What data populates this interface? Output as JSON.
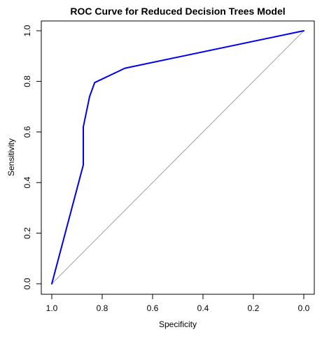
{
  "chart_data": {
    "type": "line",
    "title": "ROC Curve for Reduced Decision Trees Model",
    "xlabel": "Specificity",
    "ylabel": "Sensitivity",
    "x_reversed": true,
    "xlim": [
      1.0,
      0.0
    ],
    "ylim": [
      0.0,
      1.0
    ],
    "x_ticks": [
      "1.0",
      "0.8",
      "0.6",
      "0.4",
      "0.2",
      "0.0"
    ],
    "x_tick_values": [
      1.0,
      0.8,
      0.6,
      0.4,
      0.2,
      0.0
    ],
    "y_ticks": [
      "0.0",
      "0.2",
      "0.4",
      "0.6",
      "0.8",
      "1.0"
    ],
    "y_tick_values": [
      0.0,
      0.2,
      0.4,
      0.6,
      0.8,
      1.0
    ],
    "grid": false,
    "series": [
      {
        "color": "#0000ee",
        "x": [
          1.0,
          0.875,
          0.875,
          0.85,
          0.83,
          0.71,
          0.0
        ],
        "y": [
          0.0,
          0.47,
          0.62,
          0.74,
          0.795,
          0.852,
          1.0
        ]
      }
    ],
    "reference_line": {
      "color": "#a0a0a0",
      "x": [
        1.0,
        0.0
      ],
      "y": [
        0.0,
        1.0
      ]
    }
  }
}
